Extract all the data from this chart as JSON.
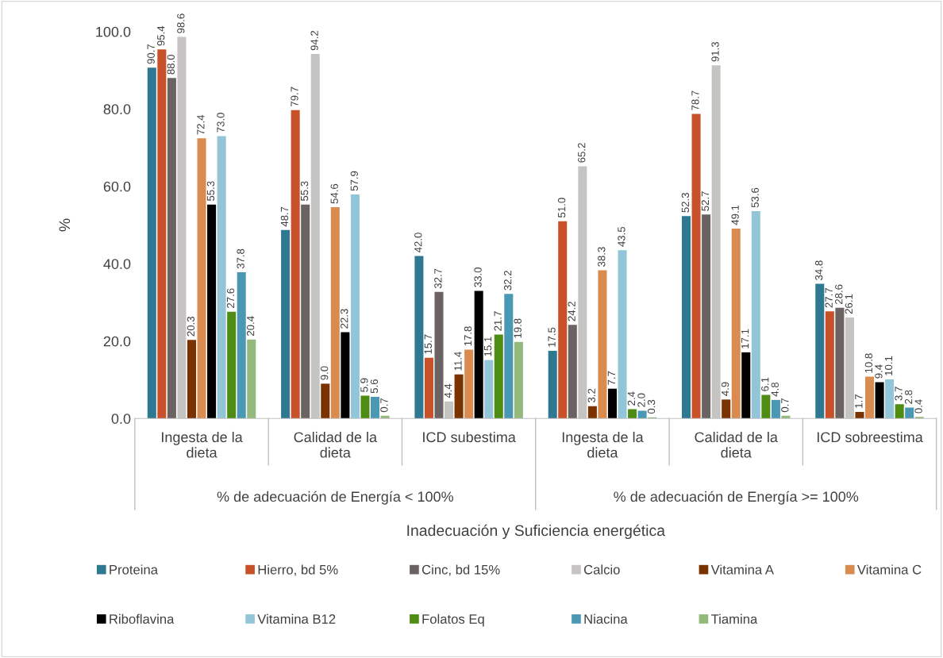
{
  "chart_data": {
    "type": "bar",
    "ylabel": "%",
    "xlabel": "Inadecuación y Suficiencia energética",
    "categories": [
      "Ingesta de la dieta",
      "Calidad de la dieta",
      "ICD subestima",
      "Ingesta de la dieta",
      "Calidad de la dieta",
      "ICD sobreestima"
    ],
    "annotations": [
      "% de adecuación de Energía < 100%",
      "% de adecuación de Energía >= 100%"
    ],
    "series": [
      {
        "name": "Proteina",
        "color": "#2e7891",
        "values": [
          90.7,
          48.7,
          42.0,
          17.5,
          52.3,
          34.8
        ],
        "value_labels": [
          "90.7",
          "48.7",
          "42.0",
          "17.5",
          "52.3",
          "34.8"
        ]
      },
      {
        "name": "Hierro, bd 5%",
        "color": "#c8512a",
        "values": [
          95.4,
          79.7,
          15.7,
          51.0,
          78.7,
          27.7
        ],
        "value_labels": [
          "95.4",
          "79.7",
          "15.7",
          "51.0",
          "78.7",
          "27.7"
        ]
      },
      {
        "name": "Cinc, bd 15%",
        "color": "#6b6361",
        "values": [
          88.0,
          55.3,
          32.7,
          24.2,
          52.7,
          28.6
        ],
        "value_labels": [
          "88.0",
          "55.3",
          "32.7",
          "24.2",
          "52.7",
          "28.6"
        ]
      },
      {
        "name": "Calcio",
        "color": "#c6c4c3",
        "values": [
          98.6,
          94.2,
          4.4,
          65.2,
          91.3,
          26.1
        ],
        "value_labels": [
          "98.6",
          "94.2",
          "4.4",
          "65.2",
          "91.3",
          "26.1"
        ]
      },
      {
        "name": "Vitamina A",
        "color": "#7a3200",
        "values": [
          20.3,
          9.0,
          11.4,
          3.2,
          4.9,
          1.7
        ],
        "value_labels": [
          "20.3",
          "9.0",
          "11.4",
          "3.2",
          "4.9",
          "1.7"
        ]
      },
      {
        "name": "Vitamina C",
        "color": "#d98b50",
        "values": [
          72.4,
          54.6,
          17.8,
          38.3,
          49.1,
          10.8
        ],
        "value_labels": [
          "72.4",
          "54.6",
          "17.8",
          "38.3",
          "49.1",
          "10.8"
        ]
      },
      {
        "name": "Riboflavina",
        "color": "#000000",
        "values": [
          55.3,
          22.3,
          33.0,
          7.7,
          17.1,
          9.4
        ],
        "value_labels": [
          "55.3",
          "22.3",
          "33.0",
          "7.7",
          "17.1",
          "9.4"
        ]
      },
      {
        "name": "Vitamina B12",
        "color": "#93c5d8",
        "values": [
          73.0,
          57.9,
          15.1,
          43.5,
          53.6,
          10.1
        ],
        "value_labels": [
          "73.0",
          "57.9",
          "15.1",
          "43.5",
          "53.6",
          "10.1"
        ]
      },
      {
        "name": "Folatos Eq",
        "color": "#4e8c14",
        "values": [
          27.6,
          5.9,
          21.7,
          2.4,
          6.1,
          3.7
        ],
        "value_labels": [
          "27.6",
          "5.9",
          "21.7",
          "2.4",
          "6.1",
          "3.7"
        ]
      },
      {
        "name": "Niacina",
        "color": "#4b98b5",
        "values": [
          37.8,
          5.6,
          32.2,
          2.0,
          4.8,
          2.8
        ],
        "value_labels": [
          "37.8",
          "5.6",
          "32.2",
          "2.0",
          "4.8",
          "2.8"
        ]
      },
      {
        "name": "Tiamina",
        "color": "#93b97d",
        "values": [
          20.4,
          0.7,
          19.8,
          0.3,
          0.7,
          0.4
        ],
        "value_labels": [
          "20.4",
          "0.7",
          "19.8",
          "0.3",
          "0.7",
          "0.4"
        ]
      }
    ],
    "ylim": [
      0,
      100
    ],
    "yticks": [
      {
        "value": 0,
        "label": "0.0"
      },
      {
        "value": 20,
        "label": "20.0"
      },
      {
        "value": 40,
        "label": "40.0"
      },
      {
        "value": 60,
        "label": "60.0"
      },
      {
        "value": 80,
        "label": "80.0"
      },
      {
        "value": 100,
        "label": "100.0"
      }
    ],
    "legend": "bottom",
    "grid": false
  }
}
